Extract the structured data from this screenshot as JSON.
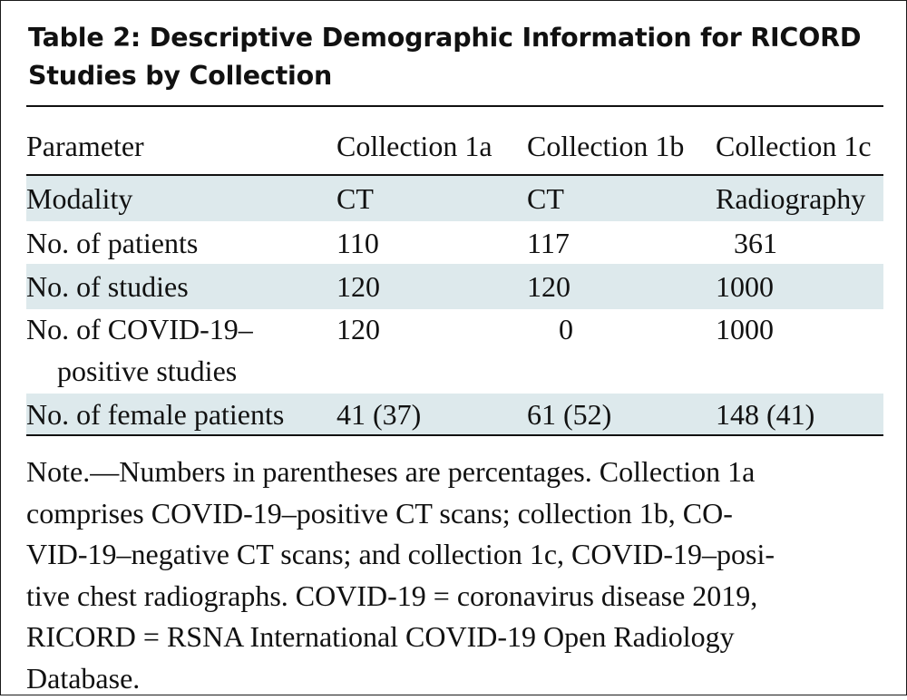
{
  "table": {
    "title": "Table 2: Descriptive Demographic Information for RICORD Studies by Collection",
    "headers": [
      "Parameter",
      "Collection 1a",
      "Collection 1b",
      "Collection 1c"
    ],
    "rows": [
      {
        "parameter": "Modality",
        "c1a": "CT",
        "c1b": "CT",
        "c1c": "Radiography"
      },
      {
        "parameter": "No. of patients",
        "c1a": "110",
        "c1b": "117",
        "c1c": "361"
      },
      {
        "parameter": "No. of studies",
        "c1a": "120",
        "c1b": "120",
        "c1c": "1000"
      },
      {
        "parameter_line1": "No. of COVID-19–",
        "parameter_line2": "positive studies",
        "c1a": "120",
        "c1b": "0",
        "c1c": "1000"
      },
      {
        "parameter": "No. of female patients",
        "c1a": "41 (37)",
        "c1b": "61 (52)",
        "c1c": "148 (41)"
      }
    ],
    "note_lines": [
      "Note.—Numbers in parentheses are percentages. Collection 1a",
      "comprises COVID-19–positive CT scans; collection 1b, CO-",
      "VID-19–negative CT scans; and collection 1c, COVID-19–posi-",
      "tive chest radiographs. COVID-19 = coronavirus disease 2019,",
      "RICORD = RSNA International COVID-19 Open Radiology",
      "Database."
    ],
    "colors": {
      "row_shade": "#dde9ec",
      "rule": "#111111",
      "text": "#111111"
    }
  }
}
